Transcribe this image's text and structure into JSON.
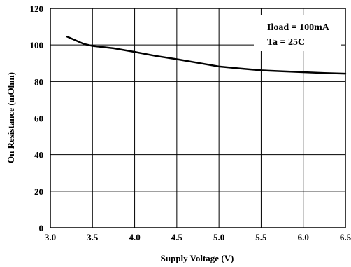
{
  "chart_data": {
    "type": "line",
    "title": "",
    "xlabel": "Supply Voltage (V)",
    "ylabel": "On Resistance (mOhm)",
    "xlim": [
      3.0,
      6.5
    ],
    "ylim": [
      0,
      120
    ],
    "xticks": [
      "3.0",
      "3.5",
      "4.0",
      "4.5",
      "5.0",
      "5.5",
      "6.0",
      "6.5"
    ],
    "yticks": [
      "0",
      "20",
      "40",
      "60",
      "80",
      "100",
      "120"
    ],
    "grid": true,
    "annotation": [
      "Iload = 100mA",
      "Ta = 25C"
    ],
    "series": [
      {
        "x": [
          3.2,
          3.3,
          3.4,
          3.5,
          3.75,
          4.0,
          4.25,
          4.5,
          4.75,
          5.0,
          5.25,
          5.5,
          5.75,
          6.0,
          6.25,
          6.5
        ],
        "y": [
          104.5,
          102.5,
          100.5,
          99.5,
          98.2,
          96.2,
          94.0,
          92.2,
          90.2,
          88.2,
          87.1,
          86.1,
          85.6,
          85.1,
          84.6,
          84.3
        ],
        "color": "#000000"
      }
    ]
  }
}
